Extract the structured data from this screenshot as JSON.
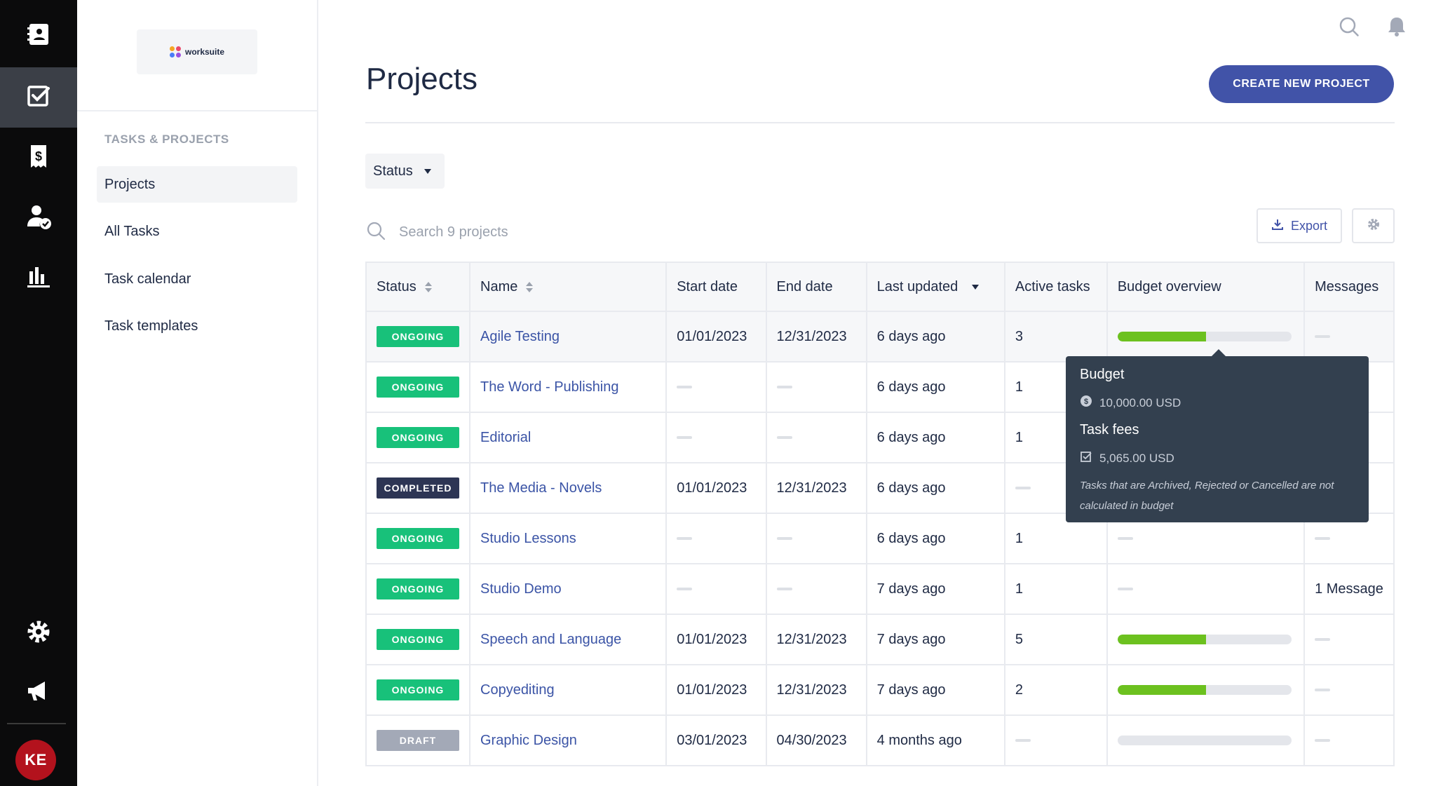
{
  "rail": {
    "items": [
      {
        "icon": "contacts-icon"
      },
      {
        "icon": "tasks-check-icon",
        "active": true
      },
      {
        "icon": "invoice-dollar-icon"
      },
      {
        "icon": "user-check-icon"
      },
      {
        "icon": "bar-chart-icon"
      }
    ],
    "bottom": [
      {
        "icon": "gear-icon"
      },
      {
        "icon": "megaphone-icon"
      }
    ],
    "avatar_initials": "KE"
  },
  "sidebar": {
    "logo_text": "worksuite",
    "section_label": "TASKS & PROJECTS",
    "items": [
      {
        "label": "Projects",
        "active": true
      },
      {
        "label": "All Tasks"
      },
      {
        "label": "Task calendar"
      },
      {
        "label": "Task templates"
      }
    ]
  },
  "header": {
    "title": "Projects",
    "create_button": "CREATE NEW PROJECT"
  },
  "filters": {
    "status_label": "Status"
  },
  "search": {
    "placeholder": "Search 9 projects"
  },
  "toolbar": {
    "export_label": "Export"
  },
  "table": {
    "columns": [
      "Status",
      "Name",
      "Start date",
      "End date",
      "Last updated",
      "Active tasks",
      "Budget overview",
      "Messages"
    ],
    "rows": [
      {
        "status": "ONGOING",
        "name": "Agile Testing",
        "start": "01/01/2023",
        "end": "12/31/2023",
        "updated": "6 days ago",
        "active_tasks": "3",
        "budget": 0.51,
        "messages": ""
      },
      {
        "status": "ONGOING",
        "name": "The Word - Publishing",
        "start": "",
        "end": "",
        "updated": "6 days ago",
        "active_tasks": "1",
        "budget": null,
        "messages": ""
      },
      {
        "status": "ONGOING",
        "name": "Editorial",
        "start": "",
        "end": "",
        "updated": "6 days ago",
        "active_tasks": "1",
        "budget": null,
        "messages": ""
      },
      {
        "status": "COMPLETED",
        "name": "The Media - Novels",
        "start": "01/01/2023",
        "end": "12/31/2023",
        "updated": "6 days ago",
        "active_tasks": "",
        "budget": null,
        "messages": ""
      },
      {
        "status": "ONGOING",
        "name": "Studio Lessons",
        "start": "",
        "end": "",
        "updated": "6 days ago",
        "active_tasks": "1",
        "budget": null,
        "messages": ""
      },
      {
        "status": "ONGOING",
        "name": "Studio Demo",
        "start": "",
        "end": "",
        "updated": "7 days ago",
        "active_tasks": "1",
        "budget": null,
        "messages": "1 Message"
      },
      {
        "status": "ONGOING",
        "name": "Speech and Language",
        "start": "01/01/2023",
        "end": "12/31/2023",
        "updated": "7 days ago",
        "active_tasks": "5",
        "budget": 0.51,
        "messages": ""
      },
      {
        "status": "ONGOING",
        "name": "Copyediting",
        "start": "01/01/2023",
        "end": "12/31/2023",
        "updated": "7 days ago",
        "active_tasks": "2",
        "budget": 0.51,
        "messages": ""
      },
      {
        "status": "DRAFT",
        "name": "Graphic Design",
        "start": "03/01/2023",
        "end": "04/30/2023",
        "updated": "4 months ago",
        "active_tasks": "",
        "budget": 0,
        "messages": ""
      }
    ]
  },
  "status_colors": {
    "ONGOING": "#18c17a",
    "COMPLETED": "#2d3554",
    "DRAFT": "#a3a9b7"
  },
  "tooltip": {
    "budget_title": "Budget",
    "budget_value": "10,000.00 USD",
    "fees_title": "Task fees",
    "fees_value": "5,065.00 USD",
    "note": "Tasks that are Archived, Rejected or Cancelled are not calculated in budget"
  }
}
